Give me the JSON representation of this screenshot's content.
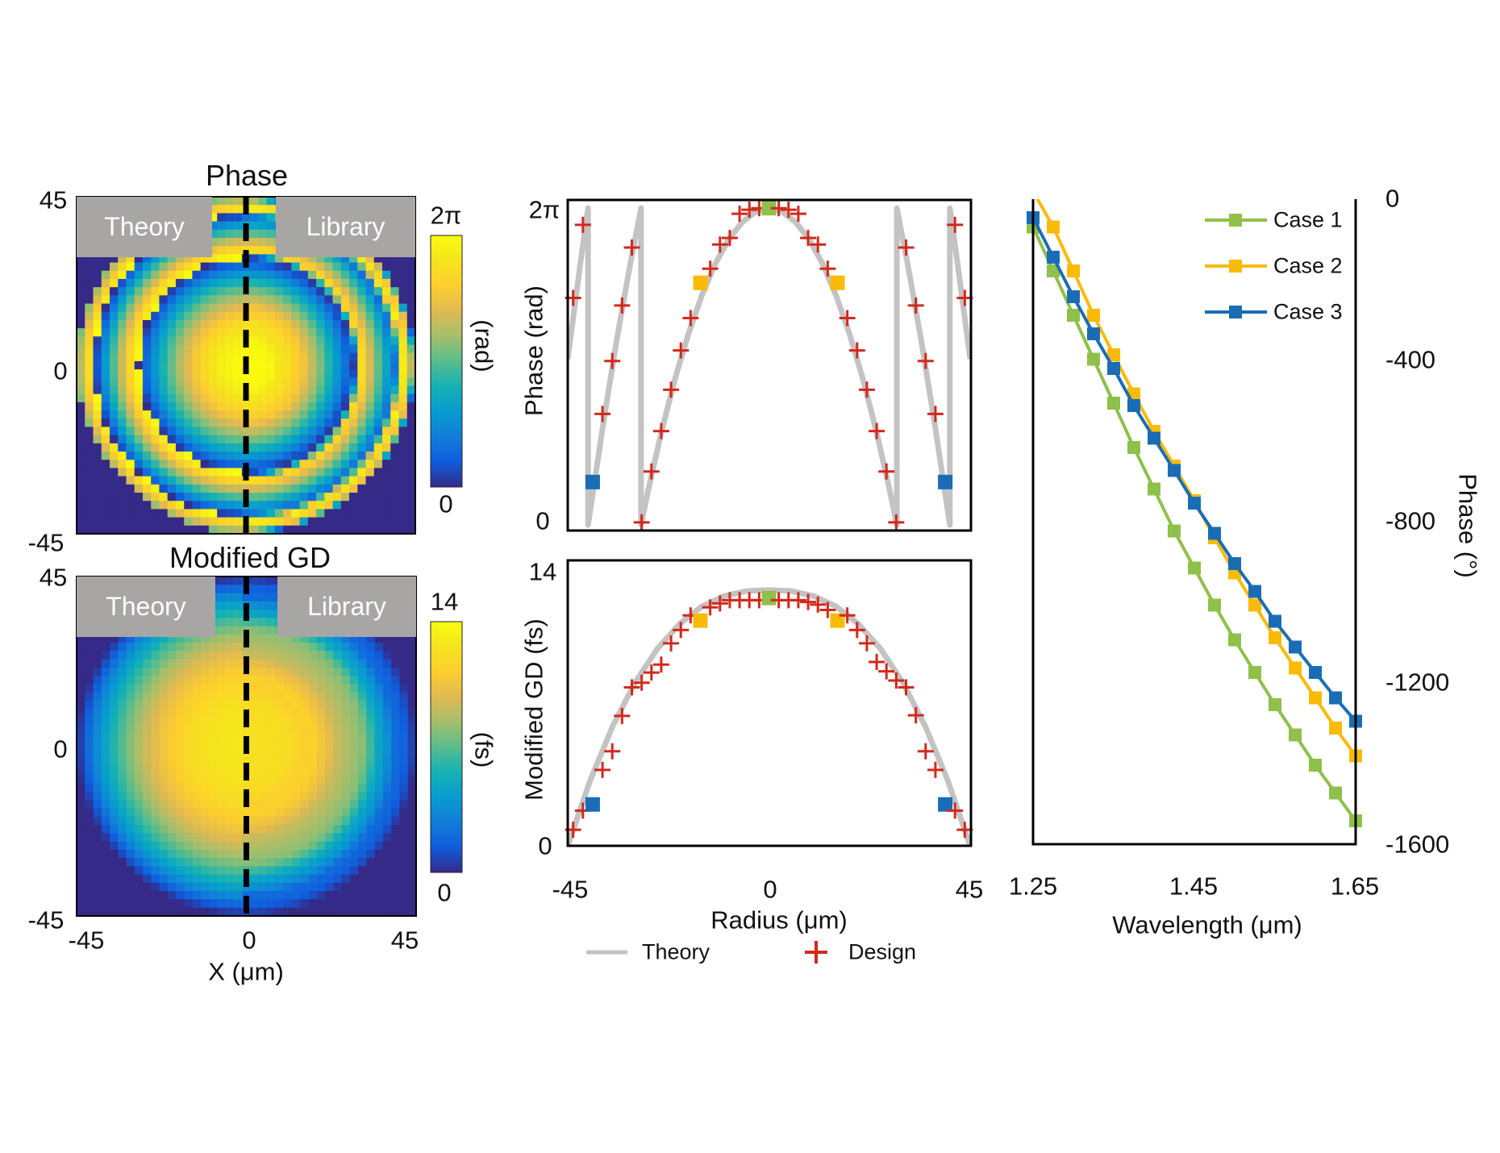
{
  "colors": {
    "case1": "#8fc04a",
    "case2": "#f9bb07",
    "case3": "#1a6db5",
    "design": "#d2291d",
    "theory": "#c3c3c3",
    "overlay_box": "#a8a5a5"
  },
  "chart_data": [
    {
      "type": "heatmap",
      "title": "Phase",
      "overlay_labels": [
        "Theory",
        "Library"
      ],
      "x_ticks": [
        "-45",
        "0",
        "45"
      ],
      "y_ticks": [
        "45",
        "0",
        "-45"
      ],
      "xlim": [
        -45,
        45
      ],
      "ylim": [
        -45,
        45
      ],
      "colormap": "parula",
      "colorbar": {
        "label": "(rad)",
        "min_label": "2π",
        "max_label": "0",
        "range": [
          0,
          6.283
        ]
      },
      "left_half_source": "Theory",
      "right_half_source": "Library",
      "divider": "dashed vertical line at X = 0"
    },
    {
      "type": "heatmap",
      "title": "Modified GD",
      "overlay_labels": [
        "Theory",
        "Library"
      ],
      "x_ticks": [
        "-45",
        "0",
        "45"
      ],
      "y_ticks": [
        "45",
        "0",
        "-45"
      ],
      "xlabel": "X (μm)",
      "xlim": [
        -45,
        45
      ],
      "ylim": [
        -45,
        45
      ],
      "colormap": "parula",
      "colorbar": {
        "label": "(fs)",
        "min_label": "14",
        "max_label": "0",
        "range": [
          0,
          14
        ]
      },
      "left_half_source": "Theory",
      "right_half_source": "Library",
      "divider": "dashed vertical line at X = 0"
    },
    {
      "type": "line",
      "ylabel": "Phase (rad)",
      "y_ticks": [
        "2π",
        "0"
      ],
      "xlim": [
        -45,
        45
      ],
      "ylim": [
        0,
        6.283
      ],
      "theory": {
        "name": "Theory",
        "x": [
          -45,
          -42,
          -40.45,
          -40.45,
          -37,
          -34,
          -31,
          -28.6,
          -28.6,
          -27,
          -24,
          -21,
          -18,
          -15,
          -12,
          -9,
          -6,
          -3,
          0,
          3,
          6,
          9,
          12,
          15,
          18,
          21,
          24,
          27,
          28.6,
          28.6,
          31,
          34,
          37,
          40.45,
          40.45,
          42,
          45
        ],
        "y": [
          3.29,
          5.3,
          6.28,
          0,
          2.05,
          3.69,
          5.18,
          6.28,
          0,
          0.69,
          1.86,
          2.9,
          3.79,
          4.55,
          5.18,
          5.66,
          6.0,
          6.21,
          6.28,
          6.21,
          6.0,
          5.66,
          5.18,
          4.55,
          3.79,
          2.9,
          1.86,
          0.69,
          0,
          6.28,
          5.18,
          3.69,
          2.05,
          0,
          6.28,
          5.3,
          3.29
        ]
      },
      "design": {
        "name": "Design",
        "x": [
          -43.8,
          -41.61,
          -39.42,
          -37.23,
          -35.04,
          -32.85,
          -30.66,
          -28.47,
          -26.28,
          -24.09,
          -21.9,
          -19.71,
          -17.52,
          -15.33,
          -13.14,
          -10.95,
          -8.76,
          -6.57,
          -4.38,
          -2.19,
          0,
          2.19,
          4.38,
          6.57,
          8.76,
          10.95,
          13.14,
          15.33,
          17.52,
          19.71,
          21.9,
          24.09,
          26.28,
          28.47,
          30.66,
          32.85,
          35.04,
          37.23,
          39.42,
          41.61,
          43.8
        ],
        "y": [
          4.5,
          5.95,
          0.85,
          2.2,
          3.25,
          4.35,
          5.5,
          0.05,
          1.06,
          1.86,
          2.68,
          3.46,
          4.1,
          4.8,
          5.08,
          5.56,
          5.69,
          6.17,
          6.25,
          6.28,
          6.28,
          6.28,
          6.25,
          6.17,
          5.69,
          5.56,
          5.08,
          4.8,
          4.1,
          3.46,
          2.68,
          1.86,
          1.06,
          0.05,
          5.5,
          4.35,
          3.25,
          2.2,
          0.85,
          5.95,
          4.5
        ]
      },
      "highlighted_points": [
        {
          "index": 2,
          "case": "case3"
        },
        {
          "index": 13,
          "case": "case2"
        },
        {
          "index": 20,
          "case": "case1"
        },
        {
          "index": 27,
          "case": "case2"
        },
        {
          "index": 38,
          "case": "case3"
        }
      ]
    },
    {
      "type": "line",
      "ylabel": "Modified GD (fs)",
      "xlabel": "Radius (μm)",
      "x_ticks": [
        "-45",
        "0",
        "45"
      ],
      "y_ticks": [
        "14",
        "0"
      ],
      "xlim": [
        -45,
        45
      ],
      "ylim": [
        0,
        14
      ],
      "theory": {
        "name": "Theory",
        "x": [
          -45,
          -40,
          -35,
          -30,
          -25,
          -20,
          -15,
          -10,
          -5,
          0,
          5,
          10,
          15,
          20,
          25,
          30,
          35,
          40,
          45
        ],
        "y": [
          0,
          3.26,
          5.96,
          8.15,
          9.85,
          11.1,
          11.98,
          12.5,
          12.75,
          12.8,
          12.75,
          12.5,
          11.98,
          11.1,
          9.85,
          8.15,
          5.96,
          3.26,
          0
        ]
      },
      "design": {
        "name": "Design",
        "x": [
          -43.8,
          -41.61,
          -39.42,
          -37.23,
          -35.04,
          -32.85,
          -30.66,
          -28.47,
          -26.28,
          -24.09,
          -21.9,
          -19.71,
          -17.52,
          -15.33,
          -13.14,
          -10.95,
          -8.76,
          -6.57,
          -4.38,
          -2.19,
          0,
          2.19,
          4.38,
          6.57,
          8.76,
          10.95,
          13.14,
          15.33,
          17.52,
          19.71,
          21.9,
          24.09,
          26.28,
          28.47,
          30.66,
          32.85,
          35.04,
          37.23,
          39.42,
          41.61,
          43.8
        ],
        "y": [
          0.8,
          1.76,
          2.07,
          3.8,
          4.73,
          6.5,
          7.93,
          8.16,
          8.67,
          9.07,
          10.13,
          10.8,
          11.53,
          11.27,
          11.93,
          12.13,
          12.29,
          12.29,
          12.29,
          12.29,
          12.4,
          12.29,
          12.29,
          12.29,
          12.2,
          12.07,
          11.8,
          11.27,
          11.53,
          10.8,
          10.13,
          9.2,
          8.73,
          8.27,
          7.93,
          6.53,
          4.73,
          3.8,
          2.07,
          1.76,
          0.8
        ]
      },
      "highlighted_points": [
        {
          "index": 2,
          "case": "case3"
        },
        {
          "index": 13,
          "case": "case2"
        },
        {
          "index": 20,
          "case": "case1"
        },
        {
          "index": 27,
          "case": "case2"
        },
        {
          "index": 38,
          "case": "case3"
        }
      ],
      "legend": {
        "theory": "Theory",
        "design": "Design",
        "placement": "bottom"
      }
    },
    {
      "type": "line",
      "xlabel": "Wavelength (μm)",
      "ylabel": "Phase (°)",
      "x_ticks": [
        "1.25",
        "1.45",
        "1.65"
      ],
      "y_ticks": [
        "0",
        "-400",
        "-800",
        "-1200",
        "-1600"
      ],
      "xlim": [
        1.25,
        1.65
      ],
      "ylim": [
        -1600,
        0
      ],
      "y_axis_side": "right",
      "legend_placement": "top-right",
      "x": [
        1.25,
        1.275,
        1.3,
        1.325,
        1.35,
        1.375,
        1.4,
        1.425,
        1.45,
        1.475,
        1.5,
        1.525,
        1.55,
        1.575,
        1.6,
        1.625,
        1.65
      ],
      "series": [
        {
          "name": "Case 1",
          "color_key": "case1",
          "values": [
            -69,
            -178,
            -288,
            -397,
            -506,
            -616,
            -719,
            -823,
            -915,
            -1007,
            -1093,
            -1174,
            -1254,
            -1329,
            -1404,
            -1473,
            -1542
          ]
        },
        {
          "name": "Case 2",
          "color_key": "case2",
          "values": [
            20,
            -69,
            -178,
            -288,
            -386,
            -483,
            -576,
            -662,
            -748,
            -840,
            -927,
            -1007,
            -1088,
            -1163,
            -1237,
            -1312,
            -1381
          ]
        },
        {
          "name": "Case 3",
          "color_key": "case3",
          "values": [
            -46,
            -144,
            -242,
            -334,
            -420,
            -512,
            -593,
            -673,
            -754,
            -829,
            -904,
            -973,
            -1047,
            -1111,
            -1174,
            -1237,
            -1295
          ]
        }
      ]
    }
  ]
}
